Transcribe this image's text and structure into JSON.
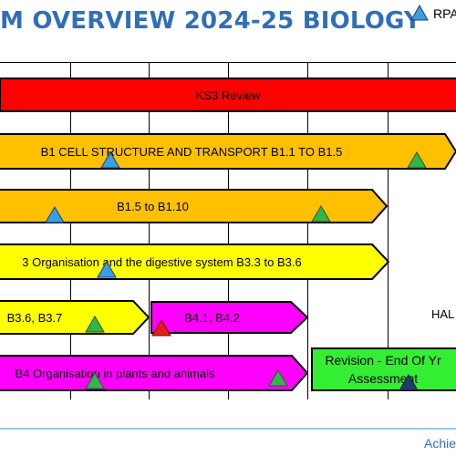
{
  "title": "M OVERVIEW 2024-25 BIOLOGY",
  "legend": {
    "label": "RPA",
    "icon": "blue-triangle-icon"
  },
  "bars": {
    "ks3_review": "KS3 Review",
    "b1_cell": "B1 CELL STRUCTURE AND TRANSPORT B1.1 TO B1.5",
    "b1_5": "B1.5 to B1.10",
    "b3_org": "3 Organisation and the digestive system B3.3 to B3.6",
    "b3_6": "B3.6, B3.7",
    "b4_1": "B4.1, B4.2",
    "b4_org": "B4 Organisation in plants and animals",
    "revision": "Revision - End Of Yr Assessment"
  },
  "side_label": "HAL",
  "footer": "Achie",
  "colors": {
    "title": "#2f6fb8",
    "red_bar": "#ff0000",
    "orange_bar": "#ffc000",
    "yellow_bar": "#ffff00",
    "magenta_bar": "#ff00ff",
    "green_bar": "#33ee33",
    "rpa_blue": "#3a9ee4",
    "marker_green": "#35b44a",
    "marker_red": "#e41e1e",
    "marker_navy": "#1f3a6e"
  }
}
